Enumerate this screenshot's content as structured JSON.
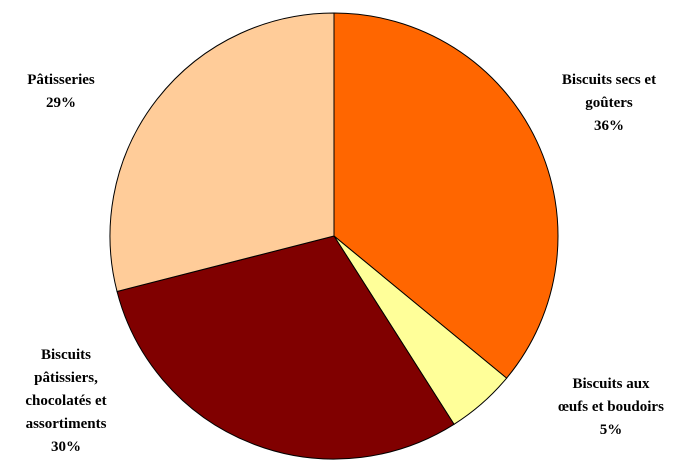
{
  "chart_data": {
    "type": "pie",
    "title": "",
    "slices": [
      {
        "label_lines": [
          "Biscuits secs et",
          "goûters"
        ],
        "percent_label": "36%",
        "value": 36,
        "color": "#FF6600"
      },
      {
        "label_lines": [
          "Biscuits aux",
          "œufs et boudoirs"
        ],
        "percent_label": "5%",
        "value": 5,
        "color": "#FFFF99"
      },
      {
        "label_lines": [
          "Biscuits",
          "pâtissiers,",
          "chocolatés et",
          "assortiments"
        ],
        "percent_label": "30%",
        "value": 30,
        "color": "#800000"
      },
      {
        "label_lines": [
          "Pâtisseries"
        ],
        "percent_label": "29%",
        "value": 29,
        "color": "#FFCC99"
      }
    ],
    "start": "12 o'clock",
    "direction": "clockwise",
    "legend": "none"
  }
}
